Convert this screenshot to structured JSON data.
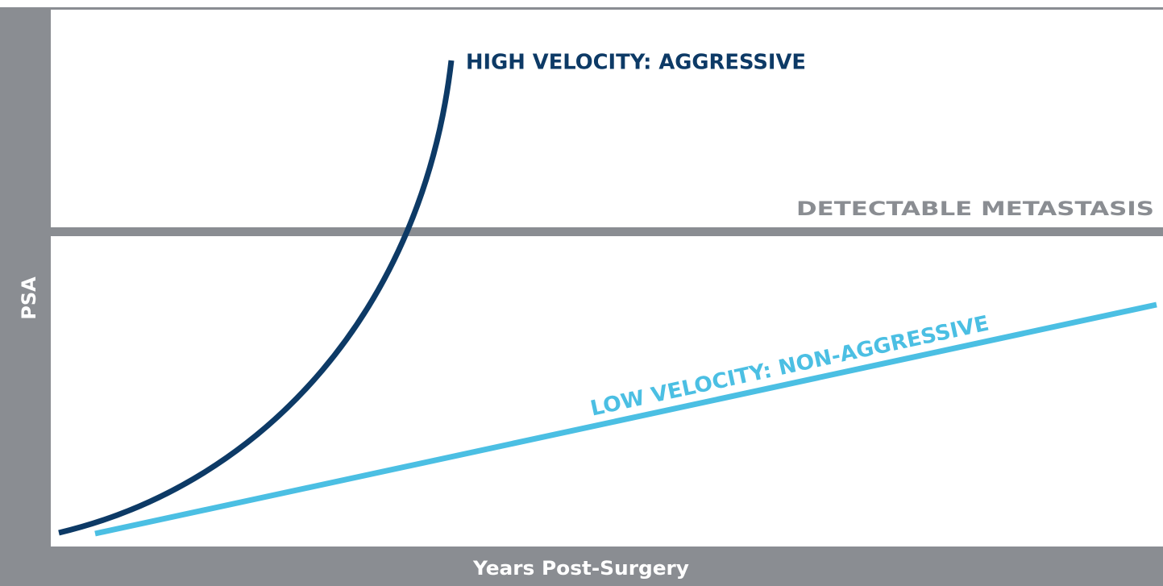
{
  "diagram": {
    "y_axis_label": "PSA",
    "x_axis_label": "Years Post-Surgery",
    "threshold_label": "DETECTABLE METASTASIS",
    "curves": [
      {
        "label": "HIGH VELOCITY: AGGRESSIVE"
      },
      {
        "label": "LOW VELOCITY: NON-AGGRESSIVE"
      }
    ]
  }
}
